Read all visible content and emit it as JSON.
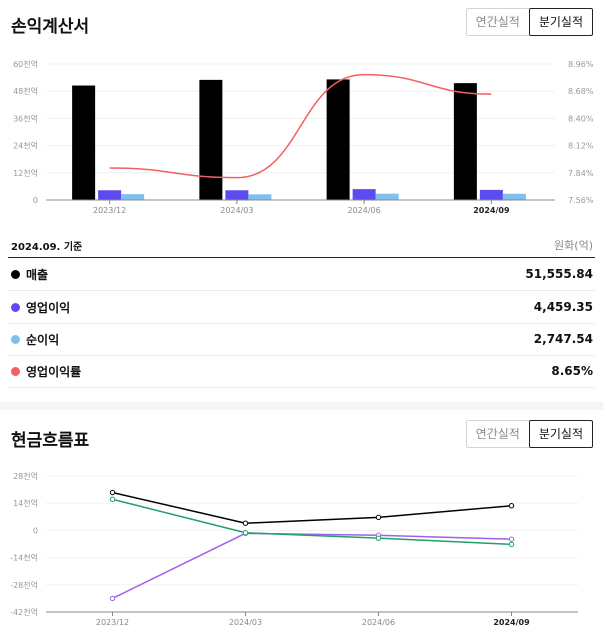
{
  "income": {
    "title": "손익계산서",
    "tabs": [
      {
        "label": "연간실적",
        "active": false
      },
      {
        "label": "분기실적",
        "active": true
      }
    ],
    "basis": "2024.09. 기준",
    "unit": "원화(억)",
    "rows": [
      {
        "label": "매출",
        "value": "51,555.84",
        "color": "#000000"
      },
      {
        "label": "영업이익",
        "value": "4,459.35",
        "color": "#5b4cf0"
      },
      {
        "label": "순이익",
        "value": "2,747.54",
        "color": "#7fc0ee"
      },
      {
        "label": "영업이익률",
        "value": "8.65%",
        "color": "#f26161"
      }
    ]
  },
  "cashflow": {
    "title": "현금흐름표",
    "tabs": [
      {
        "label": "연간실적",
        "active": false
      },
      {
        "label": "분기실적",
        "active": true
      }
    ]
  },
  "chart_data": [
    {
      "type": "bar",
      "categories": [
        "2023/12",
        "2024/03",
        "2024/06",
        "2024/09"
      ],
      "y_ticks": [
        "0",
        "12천억",
        "24천억",
        "36천억",
        "48천억",
        "60천억"
      ],
      "y_tick_values": [
        0,
        12000,
        24000,
        36000,
        48000,
        60000
      ],
      "y2_ticks": [
        "7.56%",
        "7.84%",
        "8.12%",
        "8.40%",
        "8.68%",
        "8.96%"
      ],
      "y2_tick_values": [
        7.56,
        7.84,
        8.12,
        8.4,
        8.68,
        8.96
      ],
      "ylim": [
        0,
        60000
      ],
      "y2lim": [
        7.56,
        8.96
      ],
      "series": [
        {
          "name": "매출",
          "values": [
            50500,
            53000,
            53200,
            51556
          ],
          "color": "#000000"
        },
        {
          "name": "영업이익",
          "values": [
            4300,
            4300,
            4800,
            4459
          ],
          "color": "#5b4cf0"
        },
        {
          "name": "순이익",
          "values": [
            2600,
            2500,
            2800,
            2748
          ],
          "color": "#7fc0ee"
        },
        {
          "name": "영업이익률",
          "type": "line",
          "axis": "right",
          "values": [
            7.89,
            7.79,
            8.85,
            8.65
          ],
          "color": "#f26161"
        }
      ]
    },
    {
      "type": "line",
      "categories": [
        "2023/12",
        "2024/03",
        "2024/06",
        "2024/09"
      ],
      "y_ticks": [
        "-42천억",
        "-28천억",
        "-14천억",
        "0",
        "14천억",
        "28천억"
      ],
      "y_tick_values": [
        -42000,
        -28000,
        -14000,
        0,
        14000,
        28000
      ],
      "ylim": [
        -42000,
        28000
      ],
      "series": [
        {
          "values": [
            19500,
            3700,
            6700,
            12700
          ],
          "color": "#000000"
        },
        {
          "values": [
            -35000,
            -1500,
            -2500,
            -4500
          ],
          "color": "#9b63ee"
        },
        {
          "values": [
            16000,
            -1200,
            -4000,
            -7200
          ],
          "color": "#21a06a"
        }
      ]
    }
  ]
}
